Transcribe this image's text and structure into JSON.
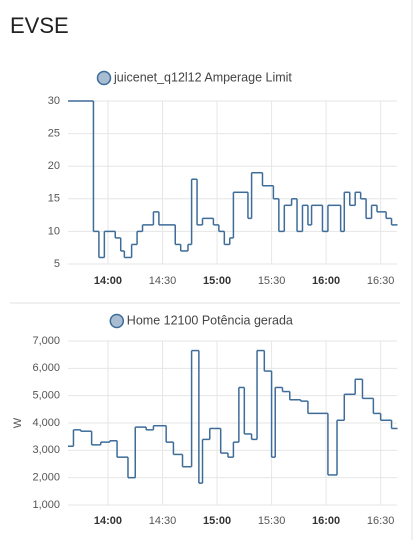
{
  "title": "EVSE",
  "chart_data": [
    {
      "type": "line",
      "step": true,
      "legend": "juicenet_q12l12 Amperage Limit",
      "xlim": [
        "13:38",
        "16:39"
      ],
      "xticks": [
        "14:00",
        "14:30",
        "15:00",
        "15:30",
        "16:00",
        "16:30"
      ],
      "ylim": [
        5,
        30
      ],
      "yticks": [
        5,
        10,
        15,
        20,
        25,
        30
      ],
      "grid": true,
      "series": [
        {
          "name": "juicenet_q12l12 Amperage Limit",
          "color": "#3d6c99",
          "x": [
            "13:38",
            "13:52",
            "13:55",
            "13:58",
            "14:04",
            "14:07",
            "14:09",
            "14:13",
            "14:16",
            "14:19",
            "14:25",
            "14:28",
            "14:37",
            "14:40",
            "14:44",
            "14:46",
            "14:49",
            "14:52",
            "14:58",
            "15:01",
            "15:04",
            "15:07",
            "15:09",
            "15:17",
            "15:19",
            "15:25",
            "15:31",
            "15:34",
            "15:37",
            "15:41",
            "15:44",
            "15:47",
            "15:50",
            "15:52",
            "15:58",
            "16:01",
            "16:06",
            "16:08",
            "16:10",
            "16:13",
            "16:16",
            "16:19",
            "16:22",
            "16:25",
            "16:28",
            "16:33",
            "16:36",
            "16:39"
          ],
          "values": [
            30,
            10,
            6,
            10,
            9,
            7,
            6,
            8,
            10,
            11,
            13,
            11,
            8,
            7,
            8,
            18,
            11,
            12,
            11,
            10,
            8,
            9,
            16,
            12,
            19,
            17,
            15,
            10,
            14,
            15,
            10,
            14,
            11,
            14,
            10,
            14,
            14,
            10,
            16,
            14,
            16,
            15,
            12,
            14,
            13,
            12,
            11,
            11
          ]
        }
      ]
    },
    {
      "type": "line",
      "step": true,
      "legend": "Home 12100 Potência gerada",
      "ylabel": "W",
      "xlim": [
        "13:38",
        "16:39"
      ],
      "xticks": [
        "14:00",
        "14:30",
        "15:00",
        "15:30",
        "16:00",
        "16:30"
      ],
      "ylim": [
        1000,
        7000
      ],
      "yticks": [
        {
          "value": 1000,
          "label": "1,000"
        },
        {
          "value": 2000,
          "label": "2,000"
        },
        {
          "value": 3000,
          "label": "3,000"
        },
        {
          "value": 4000,
          "label": "4,000"
        },
        {
          "value": 5000,
          "label": "5,000"
        },
        {
          "value": 6000,
          "label": "6,000"
        },
        {
          "value": 7000,
          "label": "7,000"
        }
      ],
      "grid": true,
      "series": [
        {
          "name": "Home 12100 Potência gerada",
          "color": "#3d6c99",
          "x": [
            "13:38",
            "13:41",
            "13:45",
            "13:51",
            "13:56",
            "14:01",
            "14:05",
            "14:11",
            "14:15",
            "14:21",
            "14:25",
            "14:32",
            "14:36",
            "14:41",
            "14:46",
            "14:50",
            "14:52",
            "14:56",
            "15:02",
            "15:06",
            "15:09",
            "15:12",
            "15:15",
            "15:19",
            "15:22",
            "15:26",
            "15:30",
            "15:32",
            "15:36",
            "15:40",
            "15:46",
            "15:50",
            "16:01",
            "16:06",
            "16:10",
            "16:16",
            "16:20",
            "16:26",
            "16:30",
            "16:36",
            "16:39"
          ],
          "values": [
            3150,
            3750,
            3700,
            3200,
            3300,
            3350,
            2750,
            2000,
            3850,
            3750,
            3900,
            3300,
            2850,
            2400,
            6650,
            1800,
            3400,
            3800,
            2900,
            2750,
            3300,
            5300,
            3600,
            3400,
            6650,
            5900,
            2750,
            5300,
            5150,
            4850,
            4800,
            4350,
            2100,
            4100,
            5050,
            5600,
            4900,
            4350,
            4100,
            3800,
            3800
          ]
        }
      ]
    }
  ]
}
